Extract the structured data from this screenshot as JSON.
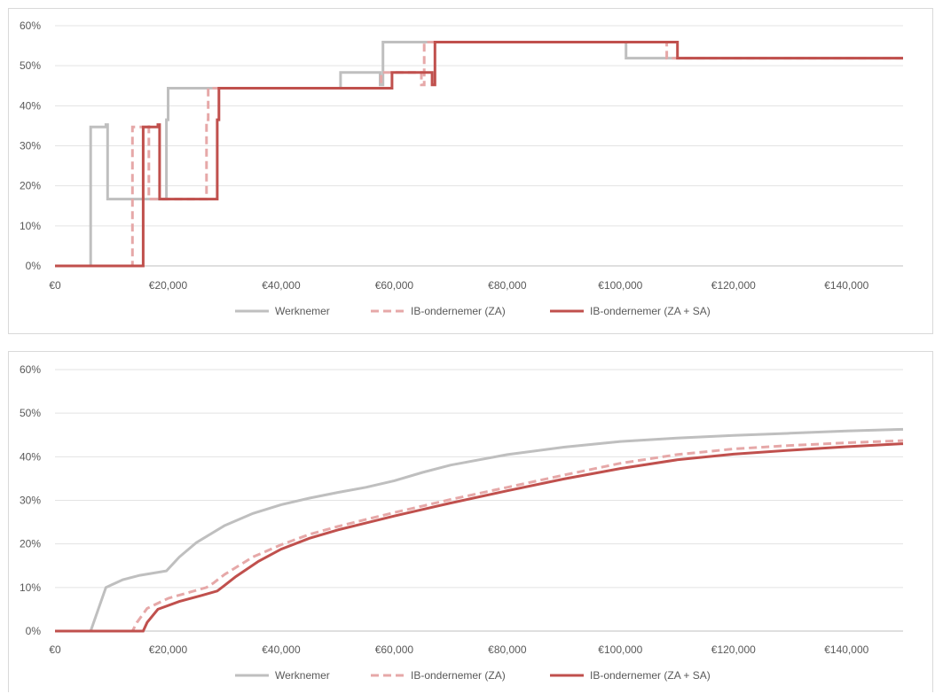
{
  "chart_data": [
    {
      "type": "line",
      "title": "",
      "xlabel": "",
      "ylabel": "",
      "xlim": [
        0,
        150000
      ],
      "ylim": [
        0,
        0.6
      ],
      "x_ticks": [
        0,
        20000,
        40000,
        60000,
        80000,
        100000,
        120000,
        140000
      ],
      "x_tick_labels": [
        "€0",
        "€20,000",
        "€40,000",
        "€60,000",
        "€80,000",
        "€100,000",
        "€120,000",
        "€140,000"
      ],
      "y_ticks": [
        0,
        0.1,
        0.2,
        0.3,
        0.4,
        0.5,
        0.6
      ],
      "y_tick_labels": [
        "0%",
        "10%",
        "20%",
        "30%",
        "40%",
        "50%",
        "60%"
      ],
      "grid": "horizontal",
      "legend": "bottom",
      "series": [
        {
          "name": "Werknemer",
          "color": "#bfbfbf",
          "style": "solid",
          "x": [
            0,
            6300,
            6300,
            9000,
            9000,
            9300,
            9300,
            19700,
            19700,
            20000,
            20000,
            50500,
            50500,
            57500,
            57500,
            58000,
            58000,
            101000,
            101000,
            150000
          ],
          "y": [
            0,
            0,
            0.347,
            0.347,
            0.353,
            0.353,
            0.167,
            0.167,
            0.365,
            0.365,
            0.444,
            0.444,
            0.483,
            0.483,
            0.452,
            0.452,
            0.559,
            0.559,
            0.519,
            0.519
          ]
        },
        {
          "name": "IB-ondernemer (ZA)",
          "color": "#e6a8a8",
          "style": "dashed",
          "x": [
            0,
            13700,
            13700,
            16300,
            16300,
            16600,
            16600,
            26800,
            26800,
            27100,
            27100,
            57700,
            57700,
            64800,
            64800,
            65300,
            65300,
            108200,
            108200,
            150000
          ],
          "y": [
            0,
            0,
            0.347,
            0.347,
            0.353,
            0.353,
            0.167,
            0.167,
            0.365,
            0.365,
            0.444,
            0.444,
            0.483,
            0.483,
            0.452,
            0.452,
            0.559,
            0.559,
            0.519,
            0.519
          ]
        },
        {
          "name": "IB-ondernemer (ZA + SA)",
          "color": "#c0504d",
          "style": "solid",
          "x": [
            0,
            15600,
            15600,
            18200,
            18200,
            18500,
            18500,
            28700,
            28700,
            29000,
            29000,
            59600,
            59600,
            66700,
            66700,
            67200,
            67200,
            110100,
            110100,
            150000
          ],
          "y": [
            0,
            0,
            0.347,
            0.347,
            0.353,
            0.353,
            0.167,
            0.167,
            0.365,
            0.365,
            0.444,
            0.444,
            0.483,
            0.483,
            0.452,
            0.452,
            0.559,
            0.559,
            0.519,
            0.519
          ]
        }
      ]
    },
    {
      "type": "line",
      "title": "",
      "xlabel": "",
      "ylabel": "",
      "xlim": [
        0,
        150000
      ],
      "ylim": [
        0,
        0.6
      ],
      "x_ticks": [
        0,
        20000,
        40000,
        60000,
        80000,
        100000,
        120000,
        140000
      ],
      "x_tick_labels": [
        "€0",
        "€20,000",
        "€40,000",
        "€60,000",
        "€80,000",
        "€100,000",
        "€120,000",
        "€140,000"
      ],
      "y_ticks": [
        0,
        0.1,
        0.2,
        0.3,
        0.4,
        0.5,
        0.6
      ],
      "y_tick_labels": [
        "0%",
        "10%",
        "20%",
        "30%",
        "40%",
        "50%",
        "60%"
      ],
      "grid": "horizontal",
      "legend": "bottom",
      "series": [
        {
          "name": "Werknemer",
          "color": "#bfbfbf",
          "style": "solid",
          "x": [
            0,
            6300,
            9000,
            12000,
            15000,
            19700,
            22000,
            25000,
            30000,
            35000,
            40000,
            45000,
            50000,
            55000,
            60000,
            65000,
            70000,
            80000,
            90000,
            100000,
            110000,
            120000,
            130000,
            140000,
            150000
          ],
          "y": [
            0,
            0,
            0.1,
            0.118,
            0.128,
            0.138,
            0.17,
            0.203,
            0.242,
            0.27,
            0.29,
            0.305,
            0.318,
            0.33,
            0.345,
            0.364,
            0.381,
            0.405,
            0.422,
            0.435,
            0.443,
            0.449,
            0.454,
            0.459,
            0.463
          ]
        },
        {
          "name": "IB-ondernemer (ZA)",
          "color": "#e6a8a8",
          "style": "dashed",
          "x": [
            0,
            13700,
            14500,
            16300,
            20000,
            24000,
            26800,
            28000,
            30000,
            35000,
            40000,
            45000,
            50000,
            55000,
            60000,
            65000,
            70000,
            80000,
            90000,
            100000,
            110000,
            120000,
            130000,
            140000,
            150000
          ],
          "y": [
            0,
            0,
            0.02,
            0.052,
            0.075,
            0.09,
            0.1,
            0.11,
            0.13,
            0.17,
            0.198,
            0.222,
            0.24,
            0.256,
            0.272,
            0.287,
            0.302,
            0.33,
            0.358,
            0.385,
            0.405,
            0.418,
            0.426,
            0.432,
            0.437
          ]
        },
        {
          "name": "IB-ondernemer (ZA + SA)",
          "color": "#c0504d",
          "style": "solid",
          "x": [
            0,
            15600,
            16300,
            18200,
            22000,
            26000,
            28700,
            30000,
            32000,
            36000,
            40000,
            45000,
            50000,
            55000,
            60000,
            65000,
            70000,
            80000,
            90000,
            100000,
            110000,
            120000,
            130000,
            140000,
            150000
          ],
          "y": [
            0,
            0,
            0.02,
            0.05,
            0.068,
            0.082,
            0.092,
            0.105,
            0.125,
            0.16,
            0.188,
            0.213,
            0.232,
            0.248,
            0.264,
            0.279,
            0.294,
            0.322,
            0.349,
            0.373,
            0.393,
            0.406,
            0.415,
            0.423,
            0.43
          ]
        }
      ]
    }
  ]
}
